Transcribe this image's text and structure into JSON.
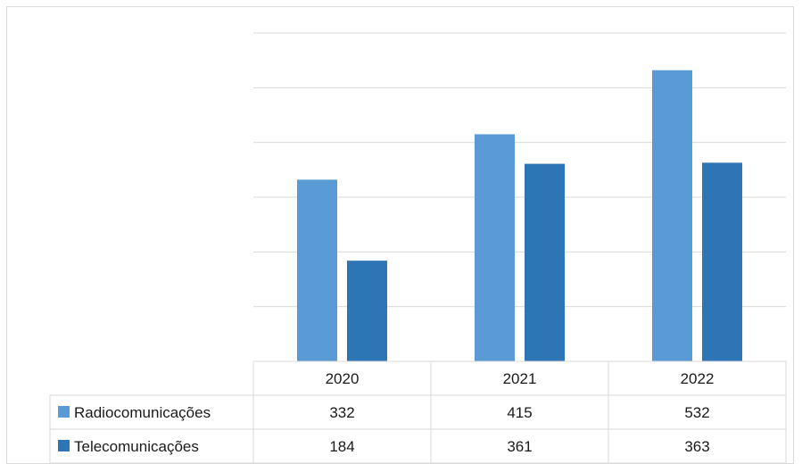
{
  "chart_data": {
    "type": "bar",
    "categories": [
      "2020",
      "2021",
      "2022"
    ],
    "series": [
      {
        "name": "Radiocomunicações",
        "values": [
          332,
          415,
          532
        ],
        "color": "#5b9bd5"
      },
      {
        "name": "Telecomunicações",
        "values": [
          184,
          361,
          363
        ],
        "color": "#2e75b6"
      }
    ],
    "ylim": [
      0,
      600
    ],
    "gridlines": [
      100,
      200,
      300,
      400,
      500,
      600
    ],
    "grid": true,
    "legend": "data-table-left",
    "data_table": true
  }
}
